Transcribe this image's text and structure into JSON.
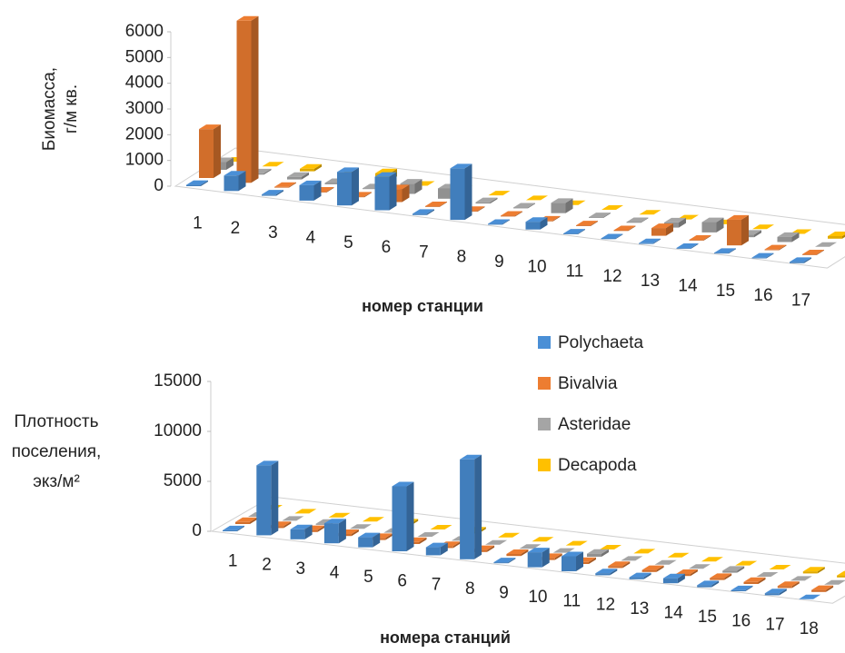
{
  "chart_data": [
    {
      "type": "bar",
      "y_label": [
        "Биомасса,",
        "г/м кв."
      ],
      "x_label": "номер станции",
      "categories": [
        "1",
        "2",
        "3",
        "4",
        "5",
        "6",
        "7",
        "8",
        "9",
        "10",
        "11",
        "12",
        "13",
        "14",
        "15",
        "16",
        "17"
      ],
      "ylim": [
        0,
        6000
      ],
      "yticks": [
        0,
        1000,
        2000,
        3000,
        4000,
        5000,
        6000
      ],
      "series": [
        {
          "color": "#4a8fd6",
          "values": [
            50,
            600,
            50,
            600,
            1300,
            1300,
            50,
            2000,
            30,
            300,
            30,
            30,
            30,
            30,
            30,
            30,
            50
          ]
        },
        {
          "color": "#ed7d31",
          "values": [
            1900,
            6300,
            30,
            30,
            30,
            500,
            30,
            30,
            30,
            30,
            30,
            30,
            300,
            30,
            1000,
            30,
            30
          ]
        },
        {
          "color": "#a5a5a5",
          "values": [
            300,
            50,
            100,
            50,
            30,
            400,
            400,
            50,
            30,
            400,
            30,
            30,
            200,
            400,
            100,
            200,
            0
          ]
        },
        {
          "color": "#ffc000",
          "values": [
            0,
            0,
            100,
            0,
            300,
            0,
            0,
            0,
            0,
            0,
            0,
            0,
            0,
            0,
            0,
            0,
            100
          ]
        }
      ]
    },
    {
      "type": "bar",
      "y_label": [
        "Плотность",
        "поселения,",
        "экз/м²"
      ],
      "x_label": "номера станций",
      "categories": [
        "1",
        "2",
        "3",
        "4",
        "5",
        "6",
        "7",
        "8",
        "9",
        "10",
        "11",
        "12",
        "13",
        "14",
        "15",
        "16",
        "17",
        "18"
      ],
      "ylim": [
        0,
        15000
      ],
      "yticks": [
        0,
        5000,
        10000,
        15000
      ],
      "series": [
        {
          "name": "Polychaeta",
          "color": "#4a8fd6",
          "values": [
            100,
            7000,
            1000,
            2000,
            1000,
            6500,
            800,
            10000,
            100,
            1500,
            1500,
            200,
            200,
            500,
            200,
            100,
            200,
            0
          ]
        },
        {
          "name": "Bivalvia",
          "color": "#ed7d31",
          "values": [
            200,
            200,
            200,
            200,
            200,
            200,
            200,
            200,
            200,
            200,
            200,
            200,
            200,
            200,
            200,
            200,
            200,
            200
          ]
        },
        {
          "name": "Asteridae",
          "color": "#a5a5a5",
          "values": [
            0,
            0,
            100,
            0,
            0,
            0,
            0,
            0,
            0,
            0,
            300,
            0,
            0,
            0,
            200,
            0,
            0,
            0
          ]
        },
        {
          "name": "Decapoda",
          "color": "#ffc000",
          "values": [
            0,
            0,
            0,
            0,
            200,
            0,
            200,
            0,
            0,
            0,
            0,
            0,
            0,
            0,
            0,
            0,
            200,
            200
          ]
        }
      ]
    }
  ]
}
